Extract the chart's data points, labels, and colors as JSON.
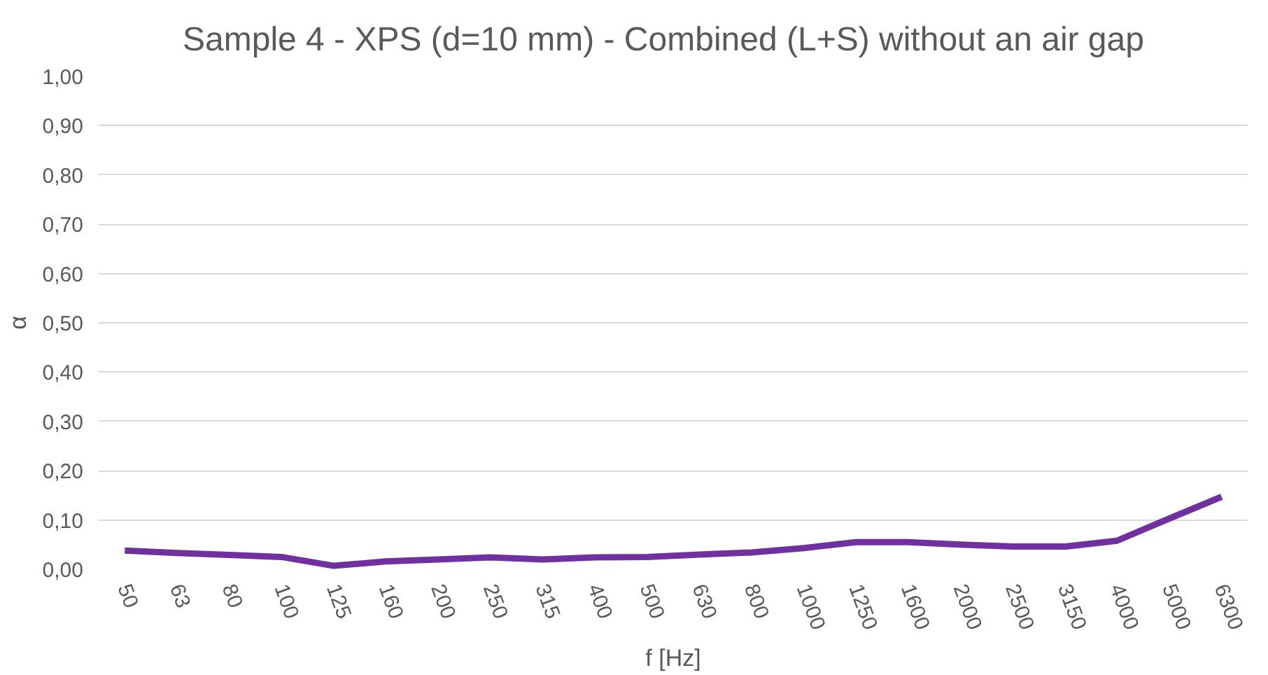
{
  "chart_data": {
    "type": "line",
    "title": "Sample 4 - XPS (d=10 mm) - Combined (L+S) without an air gap",
    "xlabel": "f [Hz]",
    "ylabel": "α",
    "categories": [
      "50",
      "63",
      "80",
      "100",
      "125",
      "160",
      "200",
      "250",
      "315",
      "400",
      "500",
      "630",
      "800",
      "1000",
      "1250",
      "1600",
      "2000",
      "2500",
      "3150",
      "4000",
      "5000",
      "6300"
    ],
    "series": [
      {
        "color": "#7030a0",
        "values": [
          0.038,
          0.033,
          0.029,
          0.025,
          0.007,
          0.016,
          0.02,
          0.024,
          0.02,
          0.024,
          0.025,
          0.03,
          0.034,
          0.043,
          0.055,
          0.055,
          0.05,
          0.046,
          0.046,
          0.058,
          0.103,
          0.147
        ]
      }
    ],
    "ylim": [
      0,
      1
    ],
    "yticks": [
      {
        "value": 0,
        "label": "0,00"
      },
      {
        "value": 0.1,
        "label": "0,10"
      },
      {
        "value": 0.2,
        "label": "0,20"
      },
      {
        "value": 0.3,
        "label": "0,30"
      },
      {
        "value": 0.4,
        "label": "0,40"
      },
      {
        "value": 0.5,
        "label": "0,50"
      },
      {
        "value": 0.6,
        "label": "0,60"
      },
      {
        "value": 0.7,
        "label": "0,70"
      },
      {
        "value": 0.8,
        "label": "0,80"
      },
      {
        "value": 0.9,
        "label": "0,90"
      },
      {
        "value": 1,
        "label": "1,00"
      }
    ],
    "grid": "y",
    "marker": "none",
    "line_style": "solid"
  }
}
